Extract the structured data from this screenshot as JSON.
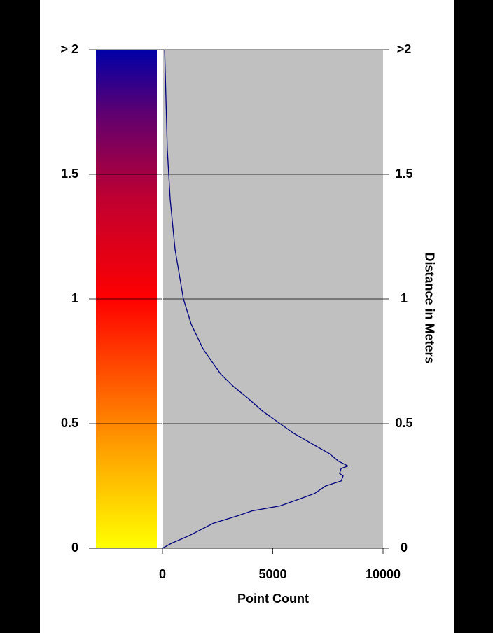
{
  "chart_data": {
    "type": "line",
    "xlabel": "Point Count",
    "ylabel": "Distance in Meters",
    "xlim": [
      0,
      10000
    ],
    "xticks": [
      0,
      5000,
      10000
    ],
    "ylim": [
      0,
      2
    ],
    "yticks": [
      0,
      0.5,
      1,
      1.5,
      {
        "value": 2,
        "label": "> 2"
      }
    ],
    "y2lim": [
      0,
      2
    ],
    "y2ticks": [
      0,
      0.5,
      1,
      1.5,
      {
        "value": 2,
        "label": ">2"
      }
    ],
    "grid": true,
    "y": [
      0,
      0.02,
      0.05,
      0.1,
      0.13,
      0.15,
      0.17,
      0.2,
      0.22,
      0.25,
      0.27,
      0.29,
      0.3,
      0.32,
      0.33,
      0.35,
      0.38,
      0.42,
      0.46,
      0.5,
      0.55,
      0.6,
      0.65,
      0.7,
      0.8,
      0.9,
      1.0,
      1.2,
      1.4,
      1.6,
      1.8,
      2.0
    ],
    "series": [
      {
        "color": "#000080",
        "values": [
          0,
          410,
          1200,
          2300,
          3400,
          4060,
          5330,
          6290,
          6900,
          7400,
          8100,
          8190,
          8030,
          8100,
          8410,
          7970,
          7560,
          6760,
          5970,
          5330,
          4540,
          3900,
          3210,
          2630,
          1840,
          1300,
          950,
          570,
          350,
          220,
          160,
          100
        ]
      }
    ]
  }
}
